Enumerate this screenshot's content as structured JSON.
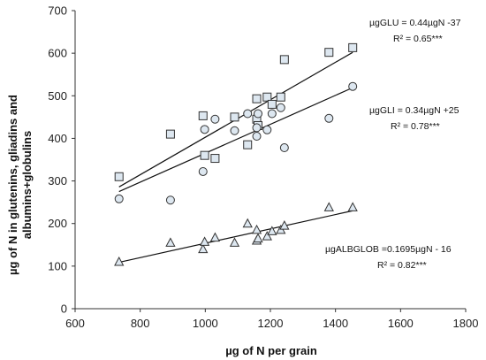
{
  "chart_data": {
    "type": "scatter",
    "title": "",
    "xlabel": "µg of N per grain",
    "ylabel": [
      "µg of N in glutenins, gliadins and",
      "albumins+globulins"
    ],
    "xlim": [
      600,
      1800
    ],
    "ylim": [
      0,
      700
    ],
    "xticks": [
      600,
      800,
      1000,
      1200,
      1400,
      1600,
      1800
    ],
    "yticks": [
      0,
      100,
      200,
      300,
      400,
      500,
      600,
      700
    ],
    "xtick_labels": [
      "600",
      "800",
      "1000",
      "1200",
      "1400",
      "1600",
      "1800"
    ],
    "ytick_labels": [
      "0",
      "100",
      "200",
      "300",
      "400",
      "500",
      "600",
      "700"
    ],
    "grid": false,
    "series": [
      {
        "marker": "square",
        "color": "#dde7f0",
        "x": [
          735,
          893,
          993,
          998,
          1030,
          1090,
          1130,
          1158,
          1158,
          1162,
          1190,
          1205,
          1232,
          1243,
          1380,
          1453
        ],
        "y": [
          310,
          410,
          453,
          360,
          353,
          450,
          385,
          493,
          445,
          430,
          497,
          480,
          497,
          585,
          602,
          613
        ],
        "fit_line": {
          "x": [
            735,
            1453
          ],
          "y": [
            286,
            602
          ]
        },
        "equation": "µgGLU = 0.44µgN -37",
        "r2": "R² = 0.65***"
      },
      {
        "marker": "circle",
        "color": "#dde7f0",
        "x": [
          735,
          893,
          993,
          998,
          1030,
          1090,
          1130,
          1158,
          1158,
          1162,
          1190,
          1205,
          1232,
          1243,
          1380,
          1453
        ],
        "y": [
          258,
          255,
          322,
          421,
          445,
          418,
          458,
          405,
          425,
          458,
          420,
          458,
          472,
          378,
          447,
          522
        ],
        "fit_line": {
          "x": [
            735,
            1453
          ],
          "y": [
            275,
            519
          ]
        },
        "equation": "µgGLI = 0.34µgN +25",
        "r2": "R² = 0.78***"
      },
      {
        "marker": "triangle",
        "color": "#dde7f0",
        "x": [
          735,
          893,
          993,
          998,
          1030,
          1090,
          1130,
          1158,
          1158,
          1162,
          1190,
          1205,
          1232,
          1243,
          1380,
          1453
        ],
        "y": [
          110,
          155,
          140,
          157,
          167,
          155,
          200,
          160,
          185,
          165,
          170,
          182,
          185,
          195,
          238,
          238
        ],
        "fit_line": {
          "x": [
            735,
            1453
          ],
          "y": [
            109,
            230
          ]
        },
        "equation": "µgALBGLOB =0.1695µgN - 16",
        "r2": "R² = 0.82***"
      }
    ]
  }
}
